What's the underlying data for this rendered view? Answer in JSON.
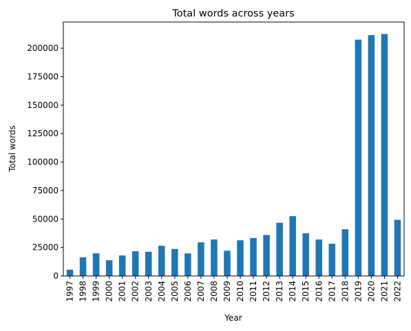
{
  "chart_data": {
    "type": "bar",
    "title": "Total words across years",
    "xlabel": "Year",
    "ylabel": "Total words",
    "categories": [
      "1997",
      "1998",
      "1999",
      "2000",
      "2001",
      "2002",
      "2003",
      "2004",
      "2005",
      "2006",
      "2007",
      "2008",
      "2009",
      "2010",
      "2011",
      "2012",
      "2013",
      "2014",
      "2015",
      "2016",
      "2017",
      "2018",
      "2019",
      "2020",
      "2021",
      "2022"
    ],
    "values": [
      5500,
      16300,
      19900,
      13800,
      18000,
      21700,
      21200,
      26500,
      23700,
      19800,
      29500,
      32000,
      22200,
      31300,
      33300,
      36000,
      46700,
      52500,
      37500,
      32000,
      28300,
      41000,
      207500,
      211500,
      212500,
      49300
    ],
    "ylim": [
      0,
      223000
    ],
    "yticks": [
      0,
      25000,
      50000,
      75000,
      100000,
      125000,
      150000,
      175000,
      200000
    ],
    "ytick_labels": [
      "0",
      "25000",
      "50000",
      "75000",
      "100000",
      "125000",
      "150000",
      "175000",
      "200000"
    ],
    "bar_color": "#1f77b4",
    "grid": false,
    "legend": "none"
  }
}
